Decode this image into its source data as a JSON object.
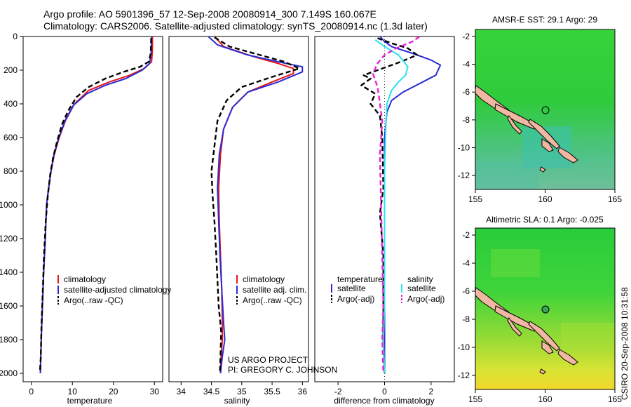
{
  "header": {
    "line1": "Argo profile: AO 5901396_57 12-Sep-2008 20080914_300 7.149S 160.067E",
    "line2": "Climatology: CARS2006. Satellite-adjusted climatology: synTS_20080914.nc (1.3d later)"
  },
  "credits": {
    "project": "US ARGO PROJECT",
    "pi": "PI: GREGORY C. JOHNSON",
    "side": "CSIRO 20-Sep-2008 10:31:58"
  },
  "colors": {
    "red": "#e8151b",
    "blue": "#2b2bd6",
    "black": "#000000",
    "cyan": "#27e3f0",
    "magenta": "#e821d6"
  },
  "chart_data": [
    {
      "type": "line",
      "id": "temperature",
      "xlabel": "temperature",
      "xlim": [
        -2,
        32
      ],
      "ylim": [
        2050,
        0
      ],
      "xticks": [
        0,
        10,
        20,
        30
      ],
      "yticks": [
        0,
        200,
        400,
        600,
        800,
        1000,
        1200,
        1400,
        1600,
        1800,
        2000
      ],
      "legend": [
        "climatology",
        "satellite-adjusted climatology",
        "Argo(..raw -QC)"
      ],
      "series": [
        {
          "name": "climatology",
          "color": "red",
          "style": "solid",
          "points": [
            [
              29.5,
              0
            ],
            [
              29.5,
              80
            ],
            [
              29.3,
              150
            ],
            [
              27.5,
              190
            ],
            [
              24,
              230
            ],
            [
              19,
              270
            ],
            [
              14,
              320
            ],
            [
              10.5,
              400
            ],
            [
              8.3,
              500
            ],
            [
              6.8,
              600
            ],
            [
              5.6,
              700
            ],
            [
              4.8,
              800
            ],
            [
              4.2,
              900
            ],
            [
              3.7,
              1000
            ],
            [
              3.4,
              1200
            ],
            [
              3.0,
              1400
            ],
            [
              2.7,
              1600
            ],
            [
              2.4,
              1800
            ],
            [
              2.2,
              2000
            ]
          ]
        },
        {
          "name": "satellite-adjusted climatology",
          "color": "blue",
          "style": "solid",
          "points": [
            [
              29.3,
              0
            ],
            [
              29.2,
              100
            ],
            [
              28.8,
              160
            ],
            [
              27,
              200
            ],
            [
              23,
              250
            ],
            [
              18,
              290
            ],
            [
              13.5,
              340
            ],
            [
              10.2,
              410
            ],
            [
              8.2,
              500
            ],
            [
              6.7,
              600
            ],
            [
              5.5,
              700
            ],
            [
              4.8,
              800
            ],
            [
              4.2,
              900
            ],
            [
              3.7,
              1000
            ],
            [
              3.4,
              1200
            ],
            [
              3.0,
              1400
            ],
            [
              2.7,
              1600
            ],
            [
              2.4,
              1800
            ],
            [
              2.2,
              2000
            ]
          ]
        },
        {
          "name": "Argo(..raw -QC)",
          "color": "black",
          "style": "dashed",
          "points": [
            [
              29.2,
              10
            ],
            [
              29.1,
              100
            ],
            [
              28.6,
              150
            ],
            [
              26.5,
              180
            ],
            [
              22.5,
              210
            ],
            [
              18,
              250
            ],
            [
              14,
              300
            ],
            [
              11,
              360
            ],
            [
              9,
              440
            ],
            [
              7.5,
              520
            ],
            [
              6.3,
              620
            ],
            [
              5.3,
              720
            ],
            [
              4.6,
              820
            ],
            [
              4.0,
              950
            ],
            [
              3.5,
              1100
            ],
            [
              3.1,
              1300
            ],
            [
              2.8,
              1500
            ],
            [
              2.5,
              1700
            ],
            [
              2.3,
              1900
            ],
            [
              2.1,
              1990
            ]
          ]
        }
      ]
    },
    {
      "type": "line",
      "id": "salinity",
      "xlabel": "salinity",
      "xlim": [
        33.8,
        36.1
      ],
      "ylim": [
        2050,
        0
      ],
      "xticks": [
        34,
        34.5,
        35,
        35.5,
        36
      ],
      "legend": [
        "climatology",
        "satellite adj. clim.",
        "Argo(..raw -QC)"
      ],
      "series": [
        {
          "name": "climatology",
          "color": "red",
          "style": "solid",
          "points": [
            [
              34.55,
              0
            ],
            [
              34.7,
              60
            ],
            [
              35.2,
              120
            ],
            [
              35.6,
              160
            ],
            [
              35.85,
              190
            ],
            [
              35.85,
              220
            ],
            [
              35.5,
              270
            ],
            [
              35.1,
              330
            ],
            [
              34.85,
              420
            ],
            [
              34.7,
              550
            ],
            [
              34.65,
              700
            ],
            [
              34.62,
              900
            ],
            [
              34.63,
              1100
            ],
            [
              34.65,
              1300
            ],
            [
              34.67,
              1500
            ],
            [
              34.68,
              1700
            ],
            [
              34.68,
              1800
            ],
            [
              34.66,
              1900
            ],
            [
              34.65,
              2000
            ]
          ]
        },
        {
          "name": "satellite adj. clim.",
          "color": "blue",
          "style": "solid",
          "points": [
            [
              34.45,
              0
            ],
            [
              34.6,
              50
            ],
            [
              35.1,
              110
            ],
            [
              35.6,
              150
            ],
            [
              36.0,
              180
            ],
            [
              36.0,
              210
            ],
            [
              35.6,
              270
            ],
            [
              35.1,
              330
            ],
            [
              34.85,
              420
            ],
            [
              34.7,
              550
            ],
            [
              34.63,
              700
            ],
            [
              34.6,
              900
            ],
            [
              34.62,
              1100
            ],
            [
              34.64,
              1300
            ],
            [
              34.67,
              1500
            ],
            [
              34.7,
              1700
            ],
            [
              34.72,
              1800
            ],
            [
              34.68,
              1900
            ],
            [
              34.65,
              2000
            ]
          ]
        },
        {
          "name": "Argo(..raw -QC)",
          "color": "black",
          "style": "dashed",
          "points": [
            [
              34.55,
              5
            ],
            [
              34.8,
              60
            ],
            [
              35.3,
              110
            ],
            [
              35.7,
              150
            ],
            [
              35.95,
              190
            ],
            [
              35.5,
              240
            ],
            [
              35.0,
              300
            ],
            [
              34.75,
              380
            ],
            [
              34.6,
              500
            ],
            [
              34.55,
              650
            ],
            [
              34.5,
              800
            ],
            [
              34.52,
              950
            ],
            [
              34.55,
              1100
            ],
            [
              34.58,
              1300
            ],
            [
              34.6,
              1450
            ],
            [
              34.62,
              1600
            ],
            [
              34.66,
              1750
            ],
            [
              34.65,
              1900
            ],
            [
              34.64,
              1990
            ]
          ]
        }
      ]
    },
    {
      "type": "line",
      "id": "difference",
      "xlabel": "difference from climatology",
      "xlim": [
        -3,
        3
      ],
      "ylim": [
        2050,
        0
      ],
      "xticks": [
        -2,
        0,
        2
      ],
      "legend_groups": [
        {
          "title": "temperature",
          "items": [
            "satellite",
            "Argo(-adj)"
          ]
        },
        {
          "title": "salinity",
          "items": [
            "satellite",
            "Argo(-adj)"
          ]
        }
      ],
      "series": [
        {
          "name": "temperature satellite",
          "color": "blue",
          "style": "solid",
          "points": [
            [
              -0.2,
              0
            ],
            [
              0.0,
              30
            ],
            [
              0.3,
              60
            ],
            [
              1.2,
              100
            ],
            [
              2.0,
              140
            ],
            [
              2.4,
              170
            ],
            [
              2.2,
              230
            ],
            [
              1.5,
              280
            ],
            [
              0.8,
              330
            ],
            [
              0.3,
              380
            ],
            [
              0.1,
              450
            ],
            [
              0.0,
              600
            ],
            [
              0.0,
              800
            ],
            [
              0.0,
              1000
            ],
            [
              0.0,
              1400
            ],
            [
              0.0,
              1800
            ],
            [
              0.0,
              2000
            ]
          ]
        },
        {
          "name": "temperature Argo(-adj)",
          "color": "black",
          "style": "dashed",
          "points": [
            [
              -0.3,
              10
            ],
            [
              0.3,
              40
            ],
            [
              1.0,
              70
            ],
            [
              1.4,
              110
            ],
            [
              0.7,
              150
            ],
            [
              -0.3,
              200
            ],
            [
              -0.9,
              230
            ],
            [
              -0.6,
              250
            ],
            [
              -1.0,
              290
            ],
            [
              -0.4,
              340
            ],
            [
              -0.6,
              400
            ],
            [
              -0.2,
              470
            ],
            [
              -0.1,
              600
            ],
            [
              -0.05,
              900
            ],
            [
              -0.2,
              1050
            ],
            [
              -0.05,
              1300
            ],
            [
              -0.05,
              1800
            ],
            [
              0.0,
              2000
            ]
          ]
        },
        {
          "name": "salinity satellite",
          "color": "cyan",
          "style": "solid",
          "points": [
            [
              -0.4,
              20
            ],
            [
              0.0,
              60
            ],
            [
              0.6,
              110
            ],
            [
              1.0,
              180
            ],
            [
              0.9,
              230
            ],
            [
              0.6,
              270
            ],
            [
              0.3,
              320
            ],
            [
              0.1,
              400
            ],
            [
              0.05,
              550
            ],
            [
              0.0,
              800
            ],
            [
              0.0,
              1200
            ],
            [
              0.0,
              1600
            ],
            [
              -0.05,
              1800
            ],
            [
              0.0,
              2000
            ]
          ]
        },
        {
          "name": "salinity Argo(-adj)",
          "color": "magenta",
          "style": "dashed",
          "points": [
            [
              1.5,
              0
            ],
            [
              1.2,
              30
            ],
            [
              0.5,
              70
            ],
            [
              0.0,
              110
            ],
            [
              -0.3,
              160
            ],
            [
              -0.5,
              220
            ],
            [
              -0.3,
              300
            ],
            [
              -0.2,
              400
            ],
            [
              -0.1,
              500
            ],
            [
              -0.2,
              700
            ],
            [
              -0.15,
              1000
            ],
            [
              -0.1,
              1300
            ],
            [
              -0.05,
              1600
            ],
            [
              -0.1,
              1800
            ],
            [
              -0.05,
              2000
            ]
          ]
        }
      ]
    },
    {
      "type": "heatmap",
      "id": "sst-map",
      "title": "AMSR-E SST: 29.1  Argo: 29",
      "xlim": [
        155,
        165
      ],
      "ylim": [
        -13,
        -1.5
      ],
      "xticks": [
        155,
        160,
        165
      ],
      "yticks": [
        -2,
        -4,
        -6,
        -8,
        -10,
        -12
      ],
      "marker": [
        160.067,
        -7.149
      ]
    },
    {
      "type": "heatmap",
      "id": "sla-map",
      "title": "Altimetric SLA: 0.1  Argo: -0.025",
      "xlim": [
        155,
        165
      ],
      "ylim": [
        -13,
        -1.5
      ],
      "xticks": [
        155,
        160,
        165
      ],
      "yticks": [
        -2,
        -4,
        -6,
        -8,
        -10,
        -12
      ],
      "marker": [
        160.067,
        -7.149
      ]
    }
  ]
}
